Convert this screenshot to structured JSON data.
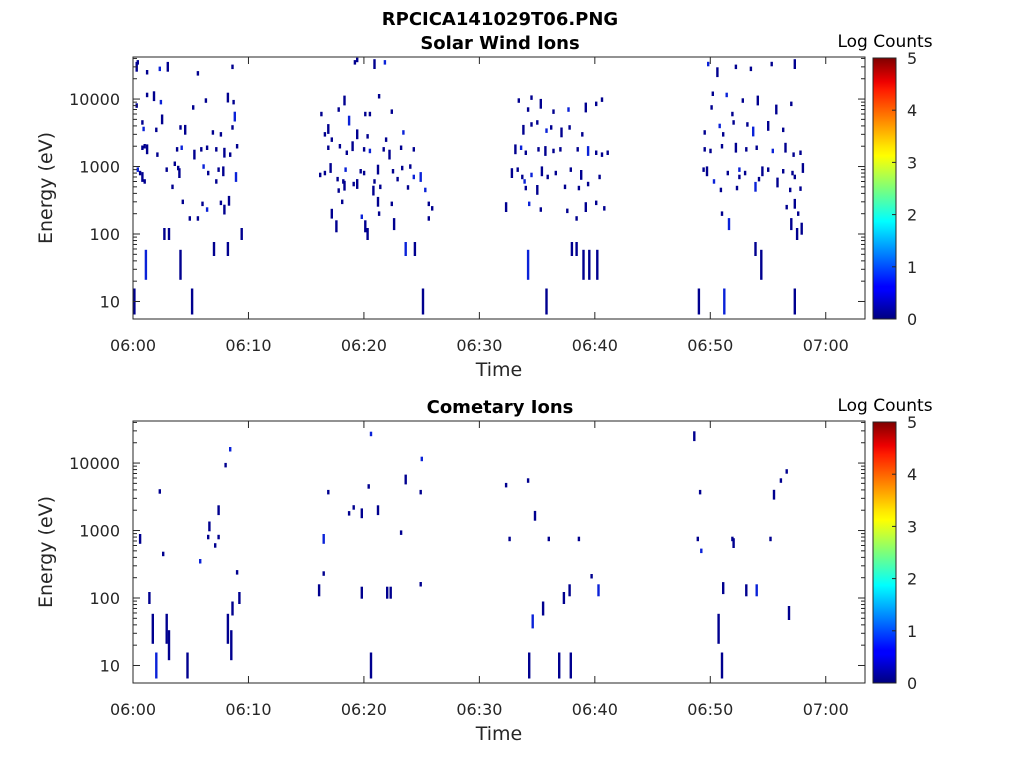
{
  "figure_title": "RPCICA141029T06.PNG",
  "chart_data": [
    {
      "type": "heatmap",
      "title": "Solar Wind Ions",
      "xlabel": "Time",
      "ylabel": "Energy (eV)",
      "yscale": "log",
      "x_tick_labels": [
        "06:00",
        "06:10",
        "06:20",
        "06:30",
        "06:40",
        "06:50",
        "07:00"
      ],
      "x_tick_minutes": [
        0,
        10,
        20,
        30,
        40,
        50,
        60
      ],
      "xlim_minutes": [
        0,
        63.4
      ],
      "y_tick_labels": [
        "10",
        "100",
        "1000",
        "10000"
      ],
      "y_tick_values": [
        10,
        100,
        1000,
        10000
      ],
      "ylim": [
        5.5,
        42000
      ],
      "colorbar": {
        "label": "Log Counts",
        "range": [
          0,
          5
        ],
        "tick_labels": [
          "0",
          "1",
          "2",
          "3",
          "4",
          "5"
        ]
      },
      "points": [
        [
          0.3,
          30000
        ],
        [
          0.4,
          35000
        ],
        [
          1.2,
          25000
        ],
        [
          2.3,
          28000
        ],
        [
          3.0,
          30000
        ],
        [
          5.6,
          24000
        ],
        [
          8.6,
          30000
        ],
        [
          1.2,
          11500
        ],
        [
          1.8,
          11000
        ],
        [
          0.3,
          8000
        ],
        [
          2.4,
          9000
        ],
        [
          6.3,
          9500
        ],
        [
          8.2,
          10500
        ],
        [
          8.7,
          9000
        ],
        [
          5.2,
          7500
        ],
        [
          0.8,
          4500
        ],
        [
          2.5,
          5000
        ],
        [
          0.9,
          3600
        ],
        [
          2.0,
          3500
        ],
        [
          4.1,
          3800
        ],
        [
          4.5,
          3500
        ],
        [
          6.9,
          3200
        ],
        [
          7.6,
          3000
        ],
        [
          8.6,
          3800
        ],
        [
          8.8,
          5500
        ],
        [
          9.0,
          2000
        ],
        [
          0.8,
          1900
        ],
        [
          1.0,
          2000
        ],
        [
          1.2,
          1800
        ],
        [
          2.1,
          1500
        ],
        [
          3.8,
          1800
        ],
        [
          4.2,
          1900
        ],
        [
          5.3,
          1500
        ],
        [
          5.9,
          1800
        ],
        [
          6.4,
          1900
        ],
        [
          7.2,
          1800
        ],
        [
          7.9,
          1600
        ],
        [
          8.4,
          1500
        ],
        [
          0.4,
          900
        ],
        [
          0.6,
          800
        ],
        [
          0.8,
          700
        ],
        [
          2.9,
          900
        ],
        [
          3.6,
          1100
        ],
        [
          3.9,
          950
        ],
        [
          4.0,
          800
        ],
        [
          6.1,
          1000
        ],
        [
          6.5,
          800
        ],
        [
          7.4,
          900
        ],
        [
          7.8,
          850
        ],
        [
          1.0,
          600
        ],
        [
          3.4,
          500
        ],
        [
          7.2,
          600
        ],
        [
          8.9,
          700
        ],
        [
          4.3,
          300
        ],
        [
          6.0,
          280
        ],
        [
          7.6,
          290
        ],
        [
          8.3,
          310
        ],
        [
          4.9,
          170
        ],
        [
          5.6,
          170
        ],
        [
          6.4,
          230
        ],
        [
          7.9,
          230
        ],
        [
          2.7,
          100
        ],
        [
          3.1,
          100
        ],
        [
          9.4,
          100
        ],
        [
          7.0,
          60
        ],
        [
          8.2,
          60
        ],
        [
          1.1,
          35
        ],
        [
          4.1,
          35
        ],
        [
          0.1,
          10
        ],
        [
          5.1,
          10
        ],
        [
          19.2,
          35000
        ],
        [
          19.4,
          38000
        ],
        [
          20.9,
          33000
        ],
        [
          21.8,
          35000
        ],
        [
          16.3,
          6000
        ],
        [
          17.8,
          7000
        ],
        [
          18.3,
          9500
        ],
        [
          20.5,
          6000
        ],
        [
          21.3,
          11000
        ],
        [
          22.4,
          6500
        ],
        [
          18.7,
          4800
        ],
        [
          20.1,
          6000
        ],
        [
          16.6,
          3000
        ],
        [
          17.2,
          2500
        ],
        [
          19.4,
          3000
        ],
        [
          20.3,
          2800
        ],
        [
          21.9,
          2500
        ],
        [
          23.4,
          3200
        ],
        [
          16.9,
          3600
        ],
        [
          16.9,
          1900
        ],
        [
          17.9,
          2000
        ],
        [
          18.5,
          1600
        ],
        [
          19.0,
          2000
        ],
        [
          20.0,
          1800
        ],
        [
          20.5,
          1700
        ],
        [
          21.7,
          1800
        ],
        [
          22.2,
          1500
        ],
        [
          23.2,
          1900
        ],
        [
          24.3,
          1800
        ],
        [
          16.6,
          800
        ],
        [
          17.1,
          950
        ],
        [
          18.4,
          900
        ],
        [
          19.7,
          850
        ],
        [
          20.0,
          800
        ],
        [
          21.2,
          900
        ],
        [
          22.5,
          850
        ],
        [
          23.3,
          950
        ],
        [
          24.0,
          1000
        ],
        [
          24.9,
          700
        ],
        [
          16.2,
          750
        ],
        [
          17.7,
          650
        ],
        [
          18.2,
          600
        ],
        [
          19.4,
          550
        ],
        [
          20.9,
          600
        ],
        [
          22.9,
          650
        ],
        [
          24.3,
          700
        ],
        [
          18.3,
          520
        ],
        [
          19.1,
          550
        ],
        [
          21.4,
          500
        ],
        [
          17.8,
          440
        ],
        [
          20.8,
          440
        ],
        [
          23.8,
          490
        ],
        [
          25.3,
          450
        ],
        [
          18.1,
          300
        ],
        [
          21.2,
          300
        ],
        [
          22.4,
          280
        ],
        [
          25.6,
          280
        ],
        [
          25.9,
          240
        ],
        [
          17.2,
          200
        ],
        [
          19.8,
          180
        ],
        [
          21.3,
          200
        ],
        [
          25.6,
          170
        ],
        [
          17.6,
          130
        ],
        [
          20.1,
          130
        ],
        [
          22.6,
          140
        ],
        [
          20.3,
          100
        ],
        [
          23.6,
          60
        ],
        [
          24.4,
          60
        ],
        [
          25.1,
          10
        ],
        [
          33.4,
          9500
        ],
        [
          35.3,
          8500
        ],
        [
          34.2,
          7000
        ],
        [
          36.4,
          6500
        ],
        [
          37.7,
          7000
        ],
        [
          39.2,
          7500
        ],
        [
          40.1,
          8500
        ],
        [
          40.6,
          9800
        ],
        [
          34.5,
          10500
        ],
        [
          33.8,
          3500
        ],
        [
          35.0,
          4500
        ],
        [
          35.8,
          3400
        ],
        [
          36.2,
          3800
        ],
        [
          37.1,
          3200
        ],
        [
          37.8,
          3800
        ],
        [
          38.9,
          3000
        ],
        [
          34.5,
          4200
        ],
        [
          33.1,
          1800
        ],
        [
          33.6,
          1900
        ],
        [
          34.0,
          1600
        ],
        [
          35.1,
          1800
        ],
        [
          35.7,
          1700
        ],
        [
          36.4,
          1700
        ],
        [
          37.0,
          1800
        ],
        [
          38.5,
          1800
        ],
        [
          39.4,
          1700
        ],
        [
          40.1,
          1600
        ],
        [
          41.1,
          1600
        ],
        [
          40.6,
          1500
        ],
        [
          32.8,
          800
        ],
        [
          33.3,
          900
        ],
        [
          33.7,
          700
        ],
        [
          34.5,
          750
        ],
        [
          35.4,
          850
        ],
        [
          35.9,
          700
        ],
        [
          36.6,
          800
        ],
        [
          37.9,
          900
        ],
        [
          38.8,
          750
        ],
        [
          40.4,
          700
        ],
        [
          33.9,
          600
        ],
        [
          34.0,
          480
        ],
        [
          35.0,
          450
        ],
        [
          37.4,
          500
        ],
        [
          38.6,
          480
        ],
        [
          39.4,
          550
        ],
        [
          32.3,
          250
        ],
        [
          34.3,
          280
        ],
        [
          35.3,
          230
        ],
        [
          37.6,
          220
        ],
        [
          39.2,
          250
        ],
        [
          40.1,
          290
        ],
        [
          40.8,
          240
        ],
        [
          38.4,
          170
        ],
        [
          34.2,
          35
        ],
        [
          38.0,
          60
        ],
        [
          38.4,
          60
        ],
        [
          39.0,
          35
        ],
        [
          39.5,
          35
        ],
        [
          40.2,
          35
        ],
        [
          35.8,
          10
        ],
        [
          49.8,
          33000
        ],
        [
          50.6,
          25000
        ],
        [
          52.2,
          30000
        ],
        [
          53.5,
          28000
        ],
        [
          55.3,
          33000
        ],
        [
          57.3,
          33000
        ],
        [
          50.2,
          12000
        ],
        [
          51.4,
          11500
        ],
        [
          52.8,
          9500
        ],
        [
          54.1,
          9500
        ],
        [
          57.0,
          8500
        ],
        [
          50.1,
          7500
        ],
        [
          51.9,
          6000
        ],
        [
          55.7,
          7000
        ],
        [
          50.8,
          4000
        ],
        [
          52.0,
          4500
        ],
        [
          53.2,
          4200
        ],
        [
          55.0,
          4000
        ],
        [
          56.3,
          3500
        ],
        [
          49.5,
          3200
        ],
        [
          51.1,
          3000
        ],
        [
          53.7,
          3300
        ],
        [
          49.5,
          1800
        ],
        [
          50.0,
          1700
        ],
        [
          51.0,
          2000
        ],
        [
          52.2,
          1900
        ],
        [
          53.1,
          1800
        ],
        [
          54.0,
          1900
        ],
        [
          55.4,
          1700
        ],
        [
          56.5,
          1900
        ],
        [
          57.2,
          1500
        ],
        [
          57.8,
          1600
        ],
        [
          49.4,
          900
        ],
        [
          49.7,
          850
        ],
        [
          51.5,
          800
        ],
        [
          52.5,
          900
        ],
        [
          53.0,
          800
        ],
        [
          54.5,
          850
        ],
        [
          55.0,
          900
        ],
        [
          56.3,
          850
        ],
        [
          57.1,
          800
        ],
        [
          58.0,
          950
        ],
        [
          50.3,
          600
        ],
        [
          52.5,
          700
        ],
        [
          54.2,
          650
        ],
        [
          55.8,
          580
        ],
        [
          57.3,
          700
        ],
        [
          50.9,
          450
        ],
        [
          52.3,
          480
        ],
        [
          53.9,
          500
        ],
        [
          56.9,
          450
        ],
        [
          57.8,
          470
        ],
        [
          56.6,
          250
        ],
        [
          57.3,
          280
        ],
        [
          57.6,
          200
        ],
        [
          51.0,
          200
        ],
        [
          51.6,
          140
        ],
        [
          57.0,
          140
        ],
        [
          57.5,
          100
        ],
        [
          57.9,
          120
        ],
        [
          53.9,
          60
        ],
        [
          54.4,
          35
        ],
        [
          49.0,
          10
        ],
        [
          51.2,
          10
        ],
        [
          57.3,
          10
        ]
      ]
    },
    {
      "type": "heatmap",
      "title": "Cometary Ions",
      "xlabel": "Time",
      "ylabel": "Energy (eV)",
      "yscale": "log",
      "x_tick_labels": [
        "06:00",
        "06:10",
        "06:20",
        "06:30",
        "06:40",
        "06:50",
        "07:00"
      ],
      "x_tick_minutes": [
        0,
        10,
        20,
        30,
        40,
        50,
        60
      ],
      "xlim_minutes": [
        0,
        63.4
      ],
      "y_tick_labels": [
        "10",
        "100",
        "1000",
        "10000"
      ],
      "y_tick_values": [
        10,
        100,
        1000,
        10000
      ],
      "ylim": [
        5.5,
        42000
      ],
      "colorbar": {
        "label": "Log Counts",
        "range": [
          0,
          5
        ],
        "tick_labels": [
          "0",
          "1",
          "2",
          "3",
          "4",
          "5"
        ]
      },
      "points": [
        [
          0.6,
          750
        ],
        [
          2.3,
          3800
        ],
        [
          2.6,
          450
        ],
        [
          5.8,
          350
        ],
        [
          6.6,
          1150
        ],
        [
          6.5,
          800
        ],
        [
          7.1,
          600
        ],
        [
          7.4,
          800
        ],
        [
          7.4,
          2000
        ],
        [
          8.0,
          9300
        ],
        [
          8.4,
          16000
        ],
        [
          9.0,
          240
        ],
        [
          9.2,
          100
        ],
        [
          1.4,
          100
        ],
        [
          1.7,
          35
        ],
        [
          2.9,
          35
        ],
        [
          3.1,
          20
        ],
        [
          2.0,
          10
        ],
        [
          4.7,
          10
        ],
        [
          8.2,
          35
        ],
        [
          8.5,
          20
        ],
        [
          8.6,
          70
        ],
        [
          16.1,
          130
        ],
        [
          16.5,
          230
        ],
        [
          16.5,
          750
        ],
        [
          16.9,
          3700
        ],
        [
          18.7,
          1800
        ],
        [
          19.1,
          2200
        ],
        [
          19.8,
          1800
        ],
        [
          19.8,
          120
        ],
        [
          20.4,
          4500
        ],
        [
          20.6,
          27000
        ],
        [
          21.2,
          2000
        ],
        [
          22.0,
          120
        ],
        [
          22.3,
          120
        ],
        [
          23.2,
          930
        ],
        [
          23.6,
          5700
        ],
        [
          24.9,
          3700
        ],
        [
          25.0,
          11500
        ],
        [
          24.9,
          160
        ],
        [
          20.6,
          10
        ],
        [
          32.3,
          4700
        ],
        [
          32.6,
          750
        ],
        [
          34.2,
          5500
        ],
        [
          34.8,
          1650
        ],
        [
          34.6,
          45
        ],
        [
          35.5,
          70
        ],
        [
          36.0,
          750
        ],
        [
          37.3,
          100
        ],
        [
          37.8,
          130
        ],
        [
          38.6,
          750
        ],
        [
          39.7,
          210
        ],
        [
          40.3,
          130
        ],
        [
          34.3,
          10
        ],
        [
          36.9,
          10
        ],
        [
          37.9,
          10
        ],
        [
          48.6,
          25000
        ],
        [
          48.9,
          750
        ],
        [
          49.1,
          3700
        ],
        [
          49.2,
          500
        ],
        [
          50.7,
          35
        ],
        [
          51.0,
          10
        ],
        [
          51.1,
          140
        ],
        [
          51.9,
          750
        ],
        [
          52.0,
          650
        ],
        [
          53.1,
          130
        ],
        [
          54.0,
          130
        ],
        [
          55.2,
          750
        ],
        [
          55.5,
          3400
        ],
        [
          56.1,
          5500
        ],
        [
          56.6,
          7500
        ],
        [
          56.8,
          60
        ]
      ]
    }
  ]
}
